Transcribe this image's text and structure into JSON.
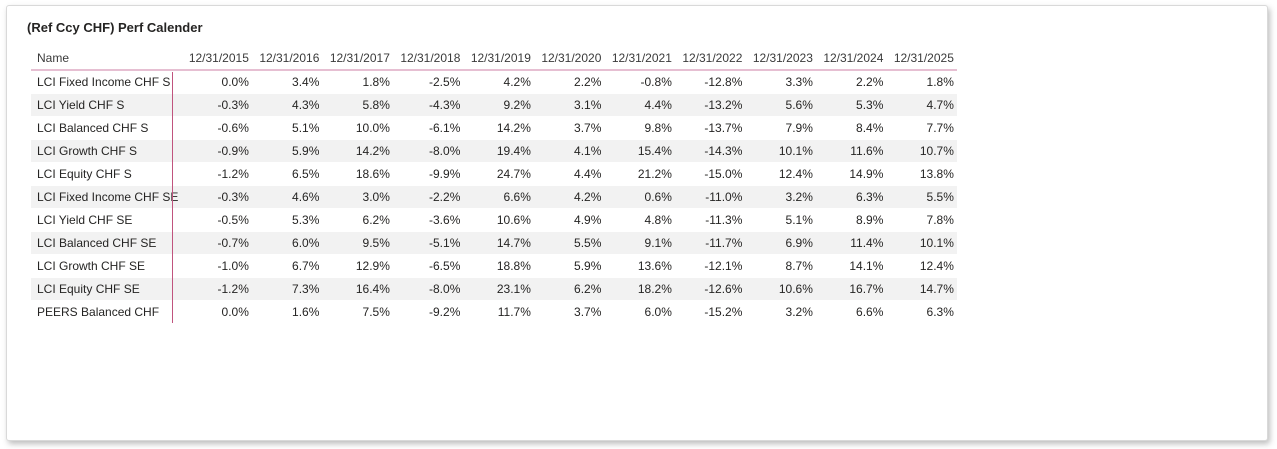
{
  "visual": {
    "title": "(Ref Ccy CHF) Perf Calender"
  },
  "chart_data": {
    "type": "table",
    "title": "(Ref Ccy CHF) Perf Calender",
    "name_column_header": "Name",
    "columns": [
      "12/31/2015",
      "12/31/2016",
      "12/31/2017",
      "12/31/2018",
      "12/31/2019",
      "12/31/2020",
      "12/31/2021",
      "12/31/2022",
      "12/31/2023",
      "12/31/2024",
      "12/31/2025"
    ],
    "rows": [
      {
        "name": "LCI Fixed Income CHF S",
        "values": [
          "0.0%",
          "3.4%",
          "1.8%",
          "-2.5%",
          "4.2%",
          "2.2%",
          "-0.8%",
          "-12.8%",
          "3.3%",
          "2.2%",
          "1.8%"
        ]
      },
      {
        "name": "LCI Yield CHF S",
        "values": [
          "-0.3%",
          "4.3%",
          "5.8%",
          "-4.3%",
          "9.2%",
          "3.1%",
          "4.4%",
          "-13.2%",
          "5.6%",
          "5.3%",
          "4.7%"
        ]
      },
      {
        "name": "LCI Balanced CHF S",
        "values": [
          "-0.6%",
          "5.1%",
          "10.0%",
          "-6.1%",
          "14.2%",
          "3.7%",
          "9.8%",
          "-13.7%",
          "7.9%",
          "8.4%",
          "7.7%"
        ]
      },
      {
        "name": "LCI Growth CHF S",
        "values": [
          "-0.9%",
          "5.9%",
          "14.2%",
          "-8.0%",
          "19.4%",
          "4.1%",
          "15.4%",
          "-14.3%",
          "10.1%",
          "11.6%",
          "10.7%"
        ]
      },
      {
        "name": "LCI Equity CHF S",
        "values": [
          "-1.2%",
          "6.5%",
          "18.6%",
          "-9.9%",
          "24.7%",
          "4.4%",
          "21.2%",
          "-15.0%",
          "12.4%",
          "14.9%",
          "13.8%"
        ]
      },
      {
        "name": "LCI Fixed Income CHF SE",
        "values": [
          "-0.3%",
          "4.6%",
          "3.0%",
          "-2.2%",
          "6.6%",
          "4.2%",
          "0.6%",
          "-11.0%",
          "3.2%",
          "6.3%",
          "5.5%"
        ]
      },
      {
        "name": "LCI Yield CHF SE",
        "values": [
          "-0.5%",
          "5.3%",
          "6.2%",
          "-3.6%",
          "10.6%",
          "4.9%",
          "4.8%",
          "-11.3%",
          "5.1%",
          "8.9%",
          "7.8%"
        ]
      },
      {
        "name": "LCI Balanced CHF SE",
        "values": [
          "-0.7%",
          "6.0%",
          "9.5%",
          "-5.1%",
          "14.7%",
          "5.5%",
          "9.1%",
          "-11.7%",
          "6.9%",
          "11.4%",
          "10.1%"
        ]
      },
      {
        "name": "LCI Growth CHF SE",
        "values": [
          "-1.0%",
          "6.7%",
          "12.9%",
          "-6.5%",
          "18.8%",
          "5.9%",
          "13.6%",
          "-12.1%",
          "8.7%",
          "14.1%",
          "12.4%"
        ]
      },
      {
        "name": "LCI Equity CHF SE",
        "values": [
          "-1.2%",
          "7.3%",
          "16.4%",
          "-8.0%",
          "23.1%",
          "6.2%",
          "18.2%",
          "-12.6%",
          "10.6%",
          "16.7%",
          "14.7%"
        ]
      },
      {
        "name": "PEERS Balanced CHF",
        "values": [
          "0.0%",
          "1.6%",
          "7.5%",
          "-9.2%",
          "11.7%",
          "3.7%",
          "6.0%",
          "-15.2%",
          "3.2%",
          "6.6%",
          "6.3%"
        ]
      }
    ]
  },
  "colors": {
    "title_text": "#252423",
    "header_text": "#3A3A3A",
    "cell_text": "#252423",
    "accent_divider": "#C0547E",
    "header_underline": "#E6BFD2",
    "alt_row_background": "#F2F2F2",
    "card_border": "#D9D9D9"
  }
}
